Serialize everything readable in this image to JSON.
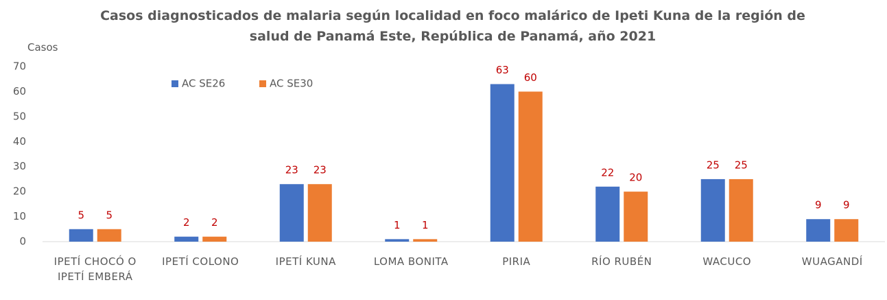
{
  "chart_data": {
    "type": "bar",
    "title": "Casos diagnosticados de malaria según localidad en foco malárico de Ipeti Kuna de la región de salud de Panamá Este, República de Panamá, año 2021",
    "y_label": "Casos",
    "categories": [
      "IPETÍ CHOCÓ O IPETÍ EMBERÁ",
      "IPETÍ COLONO",
      "IPETÍ KUNA",
      "LOMA BONITA",
      "PIRIA",
      "RÍO RUBÉN",
      "WACUCO",
      "WUAGANDÍ"
    ],
    "series": [
      {
        "name": "AC SE26",
        "color": "#4472c4",
        "values": [
          5,
          2,
          23,
          1,
          63,
          22,
          25,
          9
        ]
      },
      {
        "name": "AC SE30",
        "color": "#ed7d31",
        "values": [
          5,
          2,
          23,
          1,
          60,
          20,
          25,
          9
        ]
      }
    ],
    "ylim": [
      0,
      70
    ],
    "yticks": [
      0,
      10,
      20,
      30,
      40,
      50,
      60,
      70
    ],
    "grid": false,
    "legend": "top-left"
  }
}
